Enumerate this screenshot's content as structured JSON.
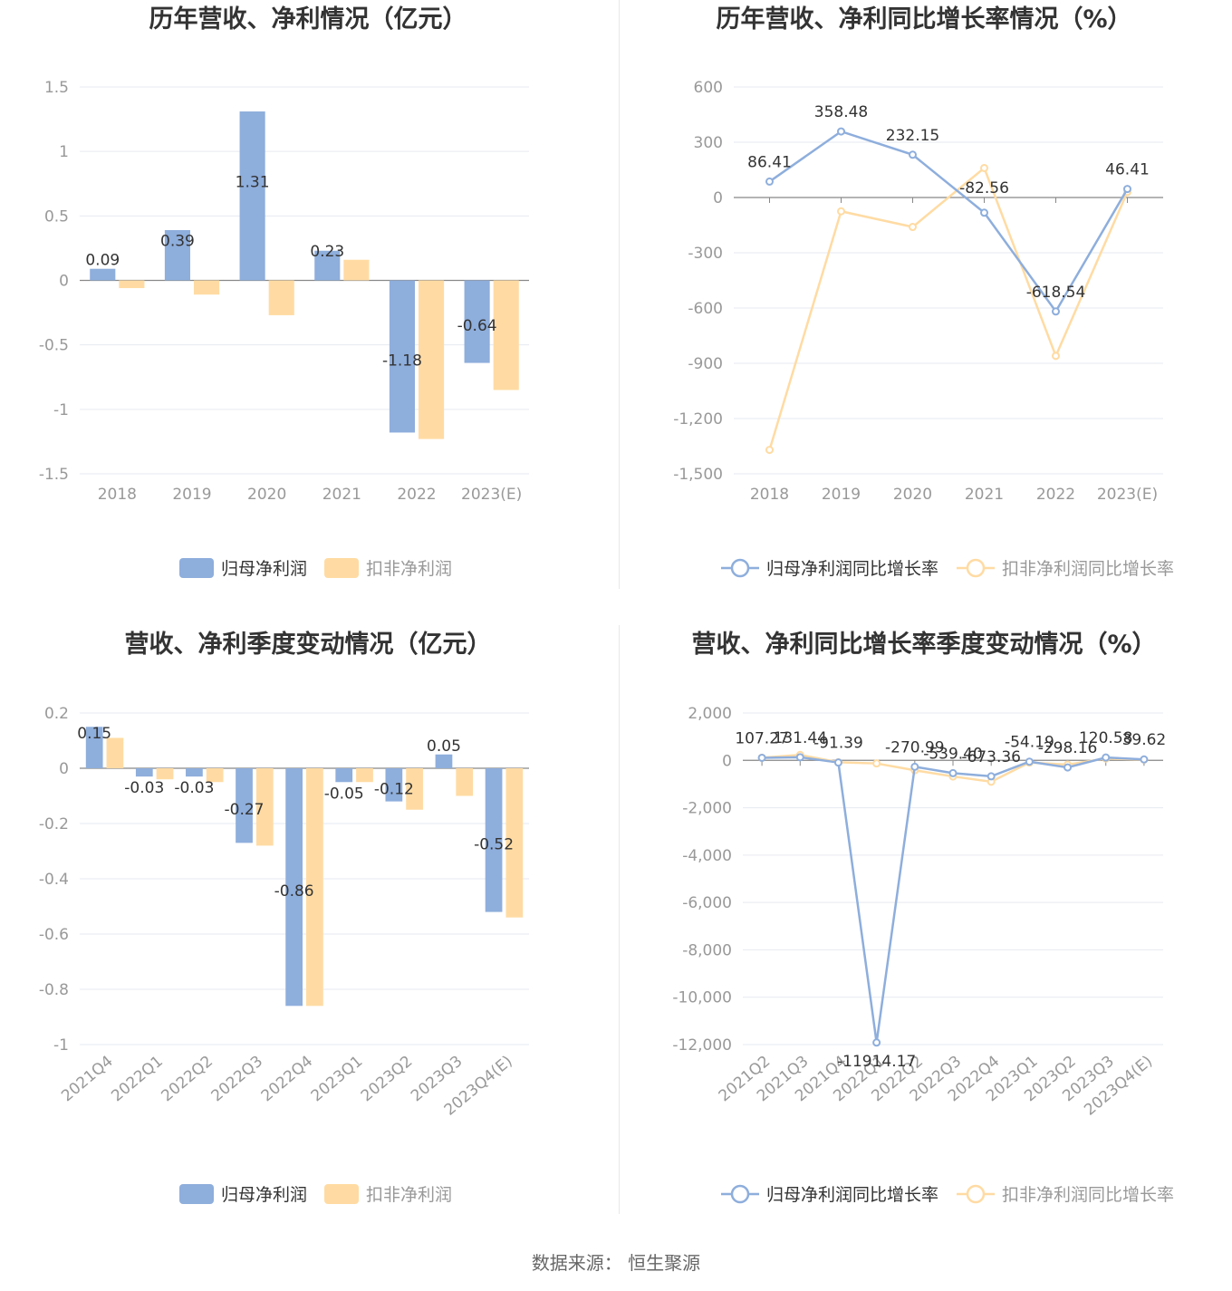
{
  "colors": {
    "series1": "#8eaedc",
    "series2": "#ffdba3",
    "axis": "#999999",
    "grid": "#e6e9f0",
    "label": "#333333"
  },
  "source": "数据来源：  恒生聚源",
  "chart_data": [
    {
      "type": "bar",
      "title": "历年营收、净利情况（亿元）",
      "categories": [
        "2018",
        "2019",
        "2020",
        "2021",
        "2022",
        "2023(E)"
      ],
      "ylim": [
        -1.5,
        1.5
      ],
      "yticks": [
        "1.5",
        "1",
        "0.5",
        "0",
        "-0.5",
        "-1",
        "-1.5"
      ],
      "ytick_values": [
        1.5,
        1,
        0.5,
        0,
        -0.5,
        -1,
        -1.5
      ],
      "series": [
        {
          "name": "归母净利润",
          "values": [
            0.09,
            0.39,
            1.31,
            0.23,
            -1.18,
            -0.64
          ],
          "labels": [
            "0.09",
            "0.39",
            "1.31",
            "0.23",
            "-1.18",
            "-0.64"
          ]
        },
        {
          "name": "扣非净利润",
          "values": [
            -0.06,
            -0.11,
            -0.27,
            0.16,
            -1.23,
            -0.85
          ]
        }
      ],
      "legend": "bottom"
    },
    {
      "type": "line",
      "title": "历年营收、净利同比增长率情况（%）",
      "categories": [
        "2018",
        "2019",
        "2020",
        "2021",
        "2022",
        "2023(E)"
      ],
      "ylim": [
        -1500,
        600
      ],
      "yticks": [
        "600",
        "300",
        "0",
        "-300",
        "-600",
        "-900",
        "-1,200",
        "-1,500"
      ],
      "ytick_values": [
        600,
        300,
        0,
        -300,
        -600,
        -900,
        -1200,
        -1500
      ],
      "series": [
        {
          "name": "归母净利润同比增长率",
          "values": [
            86.41,
            358.48,
            232.15,
            -82.56,
            -618.54,
            46.41
          ],
          "labels": [
            "86.41",
            "358.48",
            "232.15",
            "-82.56",
            "-618.54",
            "46.41"
          ]
        },
        {
          "name": "扣非净利润同比增长率",
          "values": [
            -1370,
            -75,
            -160,
            160,
            -860,
            30
          ]
        }
      ],
      "legend": "bottom"
    },
    {
      "type": "bar",
      "title": "营收、净利季度变动情况（亿元）",
      "categories": [
        "2021Q4",
        "2022Q1",
        "2022Q2",
        "2022Q3",
        "2022Q4",
        "2023Q1",
        "2023Q2",
        "2023Q3",
        "2023Q4(E)"
      ],
      "ylim": [
        -1,
        0.2
      ],
      "yticks": [
        "0.2",
        "0",
        "-0.2",
        "-0.4",
        "-0.6",
        "-0.8",
        "-1"
      ],
      "ytick_values": [
        0.2,
        0,
        -0.2,
        -0.4,
        -0.6,
        -0.8,
        -1
      ],
      "series": [
        {
          "name": "归母净利润",
          "values": [
            0.15,
            -0.03,
            -0.03,
            -0.27,
            -0.86,
            -0.05,
            -0.12,
            0.05,
            -0.52
          ],
          "labels": [
            "0.15",
            "-0.03",
            "-0.03",
            "-0.27",
            "-0.86",
            "-0.05",
            "-0.12",
            "0.05",
            "-0.52"
          ]
        },
        {
          "name": "扣非净利润",
          "values": [
            0.11,
            -0.04,
            -0.05,
            -0.28,
            -0.86,
            -0.05,
            -0.15,
            -0.1,
            -0.54
          ]
        }
      ],
      "legend": "bottom"
    },
    {
      "type": "line",
      "title": "营收、净利同比增长率季度变动情况（%）",
      "categories": [
        "2021Q2",
        "2021Q3",
        "2021Q4",
        "2022Q1",
        "2022Q2",
        "2022Q3",
        "2022Q4",
        "2023Q1",
        "2023Q2",
        "2023Q3",
        "2023Q4(E)"
      ],
      "ylim": [
        -12000,
        2000
      ],
      "yticks": [
        "2,000",
        "0",
        "-2,000",
        "-4,000",
        "-6,000",
        "-8,000",
        "-10,000",
        "-12,000"
      ],
      "ytick_values": [
        2000,
        0,
        -2000,
        -4000,
        -6000,
        -8000,
        -10000,
        -12000
      ],
      "series": [
        {
          "name": "归母净利润同比增长率",
          "values": [
            107.27,
            131.44,
            -91.39,
            -11914.17,
            -270.99,
            -539.4,
            -673.36,
            -54.19,
            -298.16,
            120.58,
            39.62
          ],
          "labels": [
            "107.27",
            "131.44",
            "-91.39",
            "-11914.17",
            "-270.99",
            "-539.40",
            "-673.36",
            "-54.19",
            "-298.16",
            "120.58",
            "39.62"
          ]
        },
        {
          "name": "扣非净利润同比增长率",
          "values": [
            110,
            230,
            -80,
            -130,
            -420,
            -680,
            -900,
            -90,
            -180,
            80,
            30
          ]
        }
      ],
      "legend": "bottom"
    }
  ]
}
